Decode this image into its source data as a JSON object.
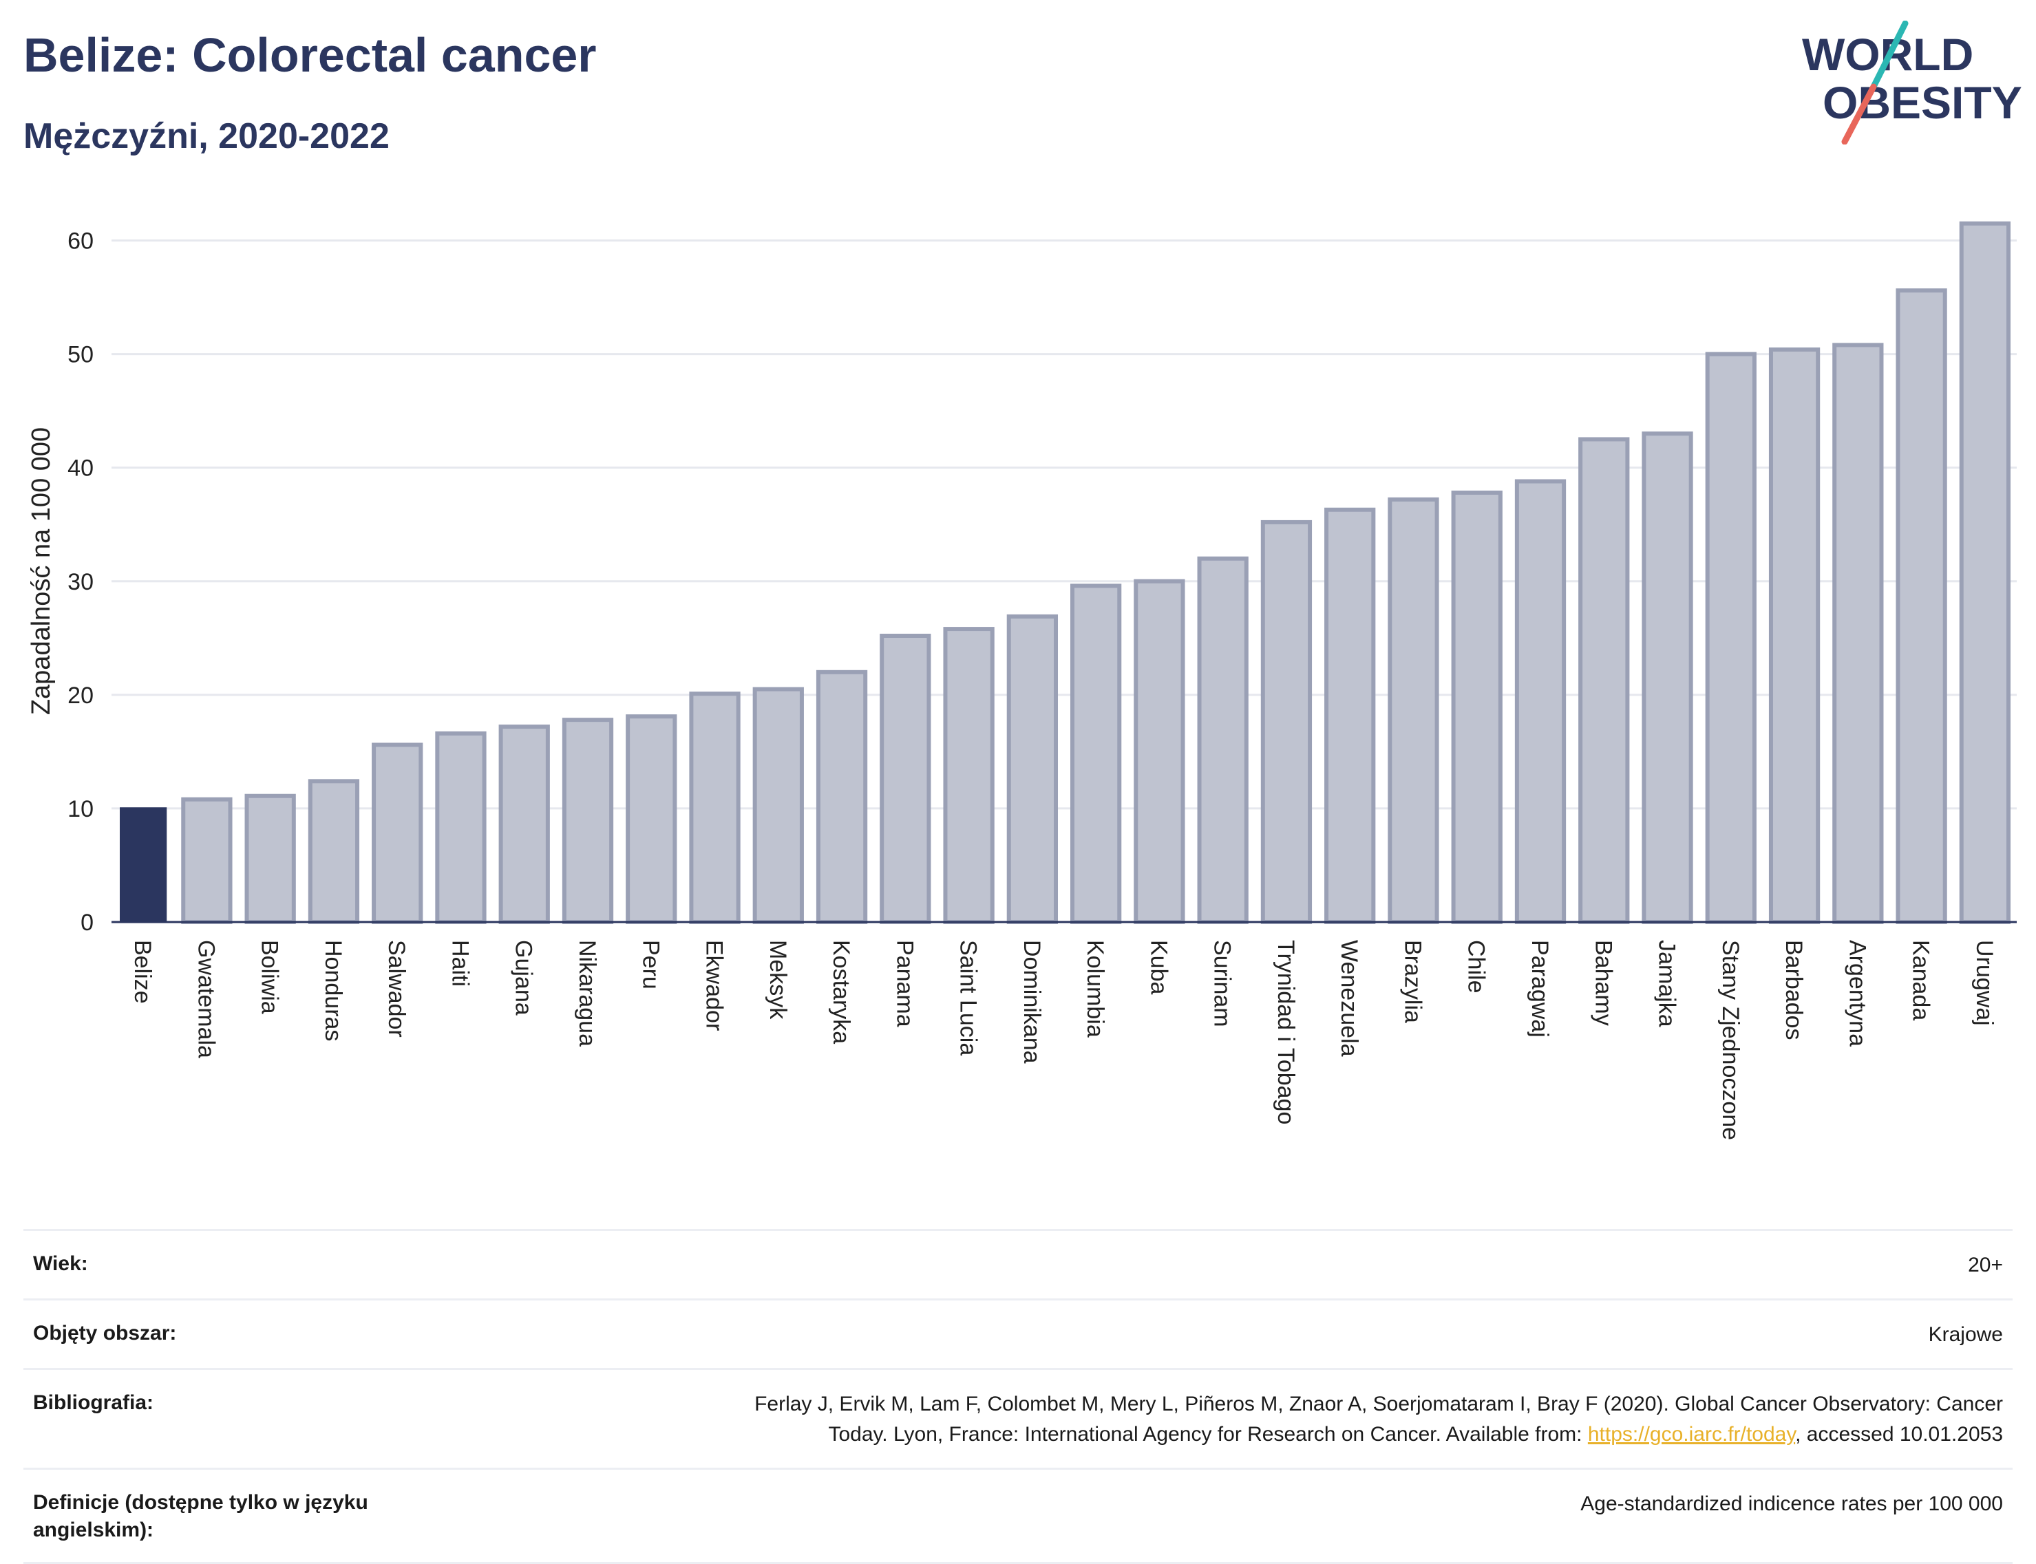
{
  "header": {
    "title": "Belize: Colorectal cancer",
    "subtitle": "Mężczyźni, 2020-2022"
  },
  "logo": {
    "text_line1": "WORLD",
    "text_line2": "OBESITY",
    "colors": {
      "text": "#2b365f",
      "slash_top": "#2bb7b3",
      "slash_bottom": "#e8665a"
    }
  },
  "chart_data": {
    "type": "bar",
    "title": "Belize: Colorectal cancer",
    "subtitle": "Mężczyźni, 2020-2022",
    "ylabel": "Zapadalność na 100 000",
    "xlabel": "",
    "ylim": [
      0,
      63
    ],
    "yticks": [
      0,
      10,
      20,
      30,
      40,
      50,
      60
    ],
    "grid": true,
    "highlight": "Belize",
    "colors": {
      "highlight": "#2b365f",
      "bar_fill": "#bfc3d0",
      "bar_edge": "#9aa0b5"
    },
    "categories": [
      "Belize",
      "Gwatemala",
      "Boliwia",
      "Honduras",
      "Salwador",
      "Haiti",
      "Gujana",
      "Nikaragua",
      "Peru",
      "Ekwador",
      "Meksyk",
      "Kostaryka",
      "Panama",
      "Saint Lucia",
      "Dominikana",
      "Kolumbia",
      "Kuba",
      "Surinam",
      "Trynidad i Tobago",
      "Wenezuela",
      "Brazylia",
      "Chile",
      "Paragwaj",
      "Bahamy",
      "Jamajka",
      "Stany Zjednoczone",
      "Barbados",
      "Argentyna",
      "Kanada",
      "Urugwaj"
    ],
    "values": [
      10.1,
      10.8,
      11.1,
      12.4,
      15.6,
      16.6,
      17.2,
      17.8,
      18.1,
      20.1,
      20.5,
      22.0,
      25.2,
      25.8,
      26.9,
      29.6,
      30.0,
      32.0,
      35.2,
      36.3,
      37.2,
      37.8,
      38.8,
      42.5,
      43.0,
      50.0,
      50.4,
      50.8,
      55.6,
      61.5
    ]
  },
  "info": {
    "age_label": "Wiek:",
    "age_value": "20+",
    "coverage_label": "Objęty obszar:",
    "coverage_value": "Krajowe",
    "bibliography_label": "Bibliografia:",
    "bibliography_line1": "Ferlay J, Ervik M, Lam F, Colombet M, Mery L, Piñeros M, Znaor A, Soerjomataram I, Bray F (2020). Global Cancer Observatory: Cancer",
    "bibliography_line2_pre": "Today. Lyon, France: International Agency for Research on Cancer. Available from: ",
    "bibliography_link": "https://gco.iarc.fr/today",
    "bibliography_line2_post": ", accessed 10.01.2053",
    "definitions_label": "Definicje (dostępne tylko w języku angielskim):",
    "definitions_value": "Age-standardized indicence rates per 100 000"
  }
}
